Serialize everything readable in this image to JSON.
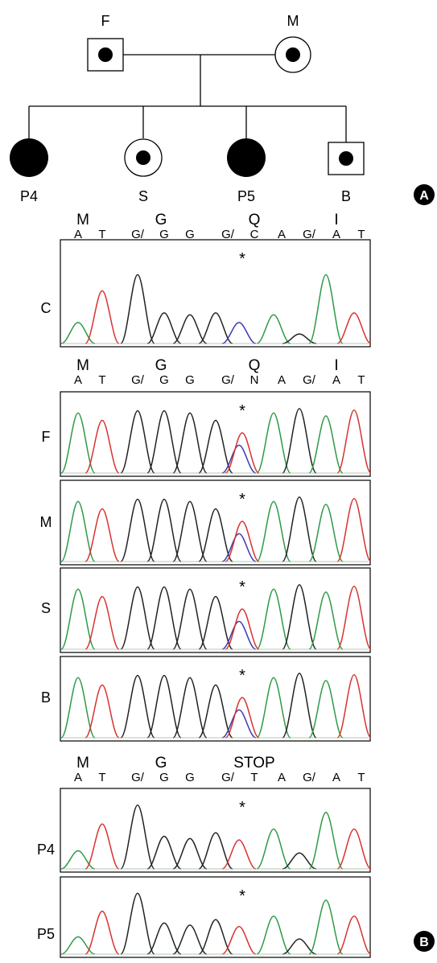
{
  "pedigree": {
    "father_label": "F",
    "mother_label": "M",
    "children": [
      {
        "label": "P4",
        "sex": "female",
        "status": "affected"
      },
      {
        "label": "S",
        "sex": "female",
        "status": "carrier"
      },
      {
        "label": "P5",
        "sex": "female",
        "status": "affected"
      },
      {
        "label": "B",
        "sex": "male",
        "status": "carrier"
      }
    ],
    "panel_letter": "A"
  },
  "sequence_groups": [
    {
      "amino_acids": [
        "M",
        "G",
        "Q",
        "I"
      ],
      "bases": [
        "A",
        "T",
        "G/",
        "G",
        "G",
        "G/",
        "C",
        "A",
        "G/",
        "A",
        "T"
      ],
      "traces": [
        {
          "label": "C",
          "pattern": "normal"
        }
      ]
    },
    {
      "amino_acids": [
        "M",
        "G",
        "Q",
        "I"
      ],
      "bases": [
        "A",
        "T",
        "G/",
        "G",
        "G",
        "G/",
        "N",
        "A",
        "G/",
        "A",
        "T"
      ],
      "traces": [
        {
          "label": "F",
          "pattern": "het"
        },
        {
          "label": "M",
          "pattern": "het"
        },
        {
          "label": "S",
          "pattern": "het"
        },
        {
          "label": "B",
          "pattern": "het"
        }
      ]
    },
    {
      "amino_acids": [
        "M",
        "G",
        "STOP"
      ],
      "bases": [
        "A",
        "T",
        "G/",
        "G",
        "G",
        "G/",
        "T",
        "A",
        "G/",
        "A",
        "T"
      ],
      "traces": [
        {
          "label": "P4",
          "pattern": "mut"
        },
        {
          "label": "P5",
          "pattern": "mut"
        }
      ]
    }
  ],
  "mutation_marker": "*",
  "panel_b_letter": "B",
  "colors": {
    "A": "#2e9a47",
    "T": "#d8322f",
    "G": "#222222",
    "C": "#3a3ab4"
  }
}
